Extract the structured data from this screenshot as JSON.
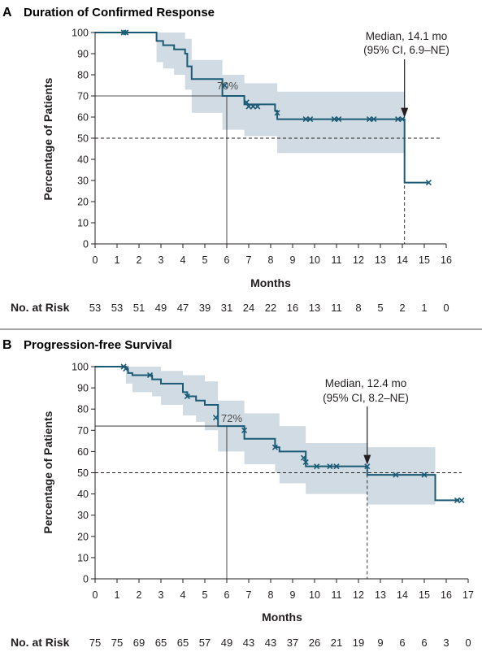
{
  "chart_data": [
    {
      "type": "line",
      "panel": "A",
      "title": "Duration of Confirmed Response",
      "xlabel": "Months",
      "ylabel": "Percentage of Patients",
      "xlim": [
        0,
        16
      ],
      "ylim": [
        0,
        100
      ],
      "xticks": [
        0,
        1,
        2,
        3,
        4,
        5,
        6,
        7,
        8,
        9,
        10,
        11,
        12,
        13,
        14,
        15,
        16
      ],
      "yticks": [
        0,
        10,
        20,
        30,
        40,
        50,
        60,
        70,
        80,
        90,
        100
      ],
      "colors": {
        "curve": "#1b5a75",
        "band": "#d0dbe3"
      },
      "km_curve": [
        [
          0,
          100
        ],
        [
          2.8,
          100
        ],
        [
          2.8,
          96
        ],
        [
          3.1,
          96
        ],
        [
          3.1,
          94
        ],
        [
          3.6,
          94
        ],
        [
          3.6,
          92
        ],
        [
          4.1,
          92
        ],
        [
          4.1,
          90
        ],
        [
          4.2,
          90
        ],
        [
          4.2,
          84
        ],
        [
          4.4,
          84
        ],
        [
          4.4,
          78
        ],
        [
          5.8,
          78
        ],
        [
          5.8,
          70
        ],
        [
          6.8,
          70
        ],
        [
          6.8,
          66
        ],
        [
          8.2,
          66
        ],
        [
          8.2,
          63
        ],
        [
          8.3,
          63
        ],
        [
          8.3,
          59
        ],
        [
          14.1,
          59
        ],
        [
          14.1,
          29
        ],
        [
          15.2,
          29
        ]
      ],
      "ci_upper": [
        [
          0,
          100
        ],
        [
          2.8,
          100
        ],
        [
          2.8,
          100
        ],
        [
          4.1,
          100
        ],
        [
          4.1,
          97
        ],
        [
          4.4,
          97
        ],
        [
          4.4,
          87
        ],
        [
          5.8,
          87
        ],
        [
          5.8,
          80
        ],
        [
          6.8,
          80
        ],
        [
          6.8,
          76
        ],
        [
          8.3,
          76
        ],
        [
          8.3,
          72
        ],
        [
          14.1,
          72
        ]
      ],
      "ci_lower": [
        [
          0,
          100
        ],
        [
          2.8,
          100
        ],
        [
          2.8,
          86
        ],
        [
          3.1,
          86
        ],
        [
          3.1,
          83
        ],
        [
          3.6,
          83
        ],
        [
          3.6,
          80
        ],
        [
          4.1,
          80
        ],
        [
          4.1,
          73
        ],
        [
          4.4,
          73
        ],
        [
          4.4,
          62
        ],
        [
          5.8,
          62
        ],
        [
          5.8,
          54
        ],
        [
          6.8,
          54
        ],
        [
          6.8,
          51
        ],
        [
          8.3,
          51
        ],
        [
          8.3,
          43
        ],
        [
          14.1,
          43
        ]
      ],
      "censored": [
        [
          1.3,
          100
        ],
        [
          1.4,
          100
        ],
        [
          5.9,
          75
        ],
        [
          6.9,
          67
        ],
        [
          7.0,
          65
        ],
        [
          7.2,
          65
        ],
        [
          7.4,
          65
        ],
        [
          8.3,
          62
        ],
        [
          9.6,
          59
        ],
        [
          9.8,
          59
        ],
        [
          10.9,
          59
        ],
        [
          11.1,
          59
        ],
        [
          12.5,
          59
        ],
        [
          12.7,
          59
        ],
        [
          13.8,
          59
        ],
        [
          14.0,
          59
        ],
        [
          15.2,
          29
        ]
      ],
      "reference_lines": {
        "x_at": 6,
        "y_at": 70,
        "median_x": 14.1,
        "median_y": 50
      },
      "point_label": "70%",
      "median_annotation": [
        "Median, 14.1 mo",
        "(95% CI, 6.9–NE)"
      ],
      "risk_table_label": "No. at Risk",
      "risk_table": [
        "53",
        "53",
        "51",
        "49",
        "47",
        "39",
        "31",
        "24",
        "22",
        "16",
        "13",
        "11",
        "8",
        "5",
        "2",
        "1",
        "0"
      ]
    },
    {
      "type": "line",
      "panel": "B",
      "title": "Progression-free Survival",
      "xlabel": "Months",
      "ylabel": "Percentage of Patients",
      "xlim": [
        0,
        17
      ],
      "ylim": [
        0,
        100
      ],
      "xticks": [
        0,
        1,
        2,
        3,
        4,
        5,
        6,
        7,
        8,
        9,
        10,
        11,
        12,
        13,
        14,
        15,
        16,
        17
      ],
      "yticks": [
        0,
        10,
        20,
        30,
        40,
        50,
        60,
        70,
        80,
        90,
        100
      ],
      "colors": {
        "curve": "#1b5a75",
        "band": "#d0dbe3"
      },
      "km_curve": [
        [
          0,
          100
        ],
        [
          1.4,
          100
        ],
        [
          1.4,
          99
        ],
        [
          1.5,
          99
        ],
        [
          1.5,
          97
        ],
        [
          1.7,
          97
        ],
        [
          1.7,
          96
        ],
        [
          2.6,
          96
        ],
        [
          2.6,
          94
        ],
        [
          3.0,
          94
        ],
        [
          3.0,
          92
        ],
        [
          4.0,
          92
        ],
        [
          4.0,
          88
        ],
        [
          4.2,
          88
        ],
        [
          4.2,
          86
        ],
        [
          4.6,
          86
        ],
        [
          4.6,
          84
        ],
        [
          5.0,
          84
        ],
        [
          5.0,
          82
        ],
        [
          5.6,
          82
        ],
        [
          5.6,
          72
        ],
        [
          6.8,
          72
        ],
        [
          6.8,
          66
        ],
        [
          8.2,
          66
        ],
        [
          8.2,
          62
        ],
        [
          8.4,
          62
        ],
        [
          8.4,
          60
        ],
        [
          9.6,
          60
        ],
        [
          9.6,
          53
        ],
        [
          12.4,
          53
        ],
        [
          12.4,
          49
        ],
        [
          15.5,
          49
        ],
        [
          15.5,
          37
        ],
        [
          16.6,
          37
        ]
      ],
      "ci_upper": [
        [
          0,
          100
        ],
        [
          1.4,
          100
        ],
        [
          1.4,
          100
        ],
        [
          3.0,
          100
        ],
        [
          3.0,
          98
        ],
        [
          4.0,
          98
        ],
        [
          4.0,
          96
        ],
        [
          5.0,
          96
        ],
        [
          5.0,
          93
        ],
        [
          5.6,
          93
        ],
        [
          5.6,
          84
        ],
        [
          6.8,
          84
        ],
        [
          6.8,
          78
        ],
        [
          8.4,
          78
        ],
        [
          8.4,
          72
        ],
        [
          9.6,
          72
        ],
        [
          9.6,
          64
        ],
        [
          12.4,
          64
        ],
        [
          12.4,
          62
        ],
        [
          15.5,
          62
        ]
      ],
      "ci_lower": [
        [
          0,
          100
        ],
        [
          1.4,
          100
        ],
        [
          1.4,
          92
        ],
        [
          1.7,
          92
        ],
        [
          1.7,
          88
        ],
        [
          2.6,
          88
        ],
        [
          2.6,
          86
        ],
        [
          3.0,
          86
        ],
        [
          3.0,
          82
        ],
        [
          4.0,
          82
        ],
        [
          4.0,
          77
        ],
        [
          4.6,
          77
        ],
        [
          4.6,
          74
        ],
        [
          5.0,
          74
        ],
        [
          5.0,
          70
        ],
        [
          5.6,
          70
        ],
        [
          5.6,
          60
        ],
        [
          6.8,
          60
        ],
        [
          6.8,
          54
        ],
        [
          8.2,
          54
        ],
        [
          8.2,
          50
        ],
        [
          8.4,
          50
        ],
        [
          8.4,
          45
        ],
        [
          9.6,
          45
        ],
        [
          9.6,
          40
        ],
        [
          12.4,
          40
        ],
        [
          12.4,
          35
        ],
        [
          15.5,
          35
        ]
      ],
      "censored": [
        [
          1.3,
          100
        ],
        [
          1.4,
          99
        ],
        [
          2.5,
          96
        ],
        [
          4.2,
          86
        ],
        [
          5.5,
          76
        ],
        [
          6.8,
          70
        ],
        [
          8.2,
          62
        ],
        [
          9.5,
          57
        ],
        [
          9.6,
          55
        ],
        [
          10.1,
          53
        ],
        [
          10.7,
          53
        ],
        [
          11.0,
          53
        ],
        [
          12.4,
          53
        ],
        [
          13.7,
          49
        ],
        [
          15.0,
          49
        ],
        [
          16.5,
          37
        ],
        [
          16.7,
          37
        ]
      ],
      "reference_lines": {
        "x_at": 6,
        "y_at": 72,
        "median_x": 12.4,
        "median_y": 50
      },
      "point_label": "72%",
      "median_annotation": [
        "Median, 12.4 mo",
        "(95% CI, 8.2–NE)"
      ],
      "risk_table_label": "No. at Risk",
      "risk_table": [
        "75",
        "75",
        "69",
        "65",
        "65",
        "57",
        "49",
        "43",
        "43",
        "37",
        "26",
        "21",
        "19",
        "9",
        "6",
        "6",
        "3",
        "0"
      ]
    }
  ]
}
